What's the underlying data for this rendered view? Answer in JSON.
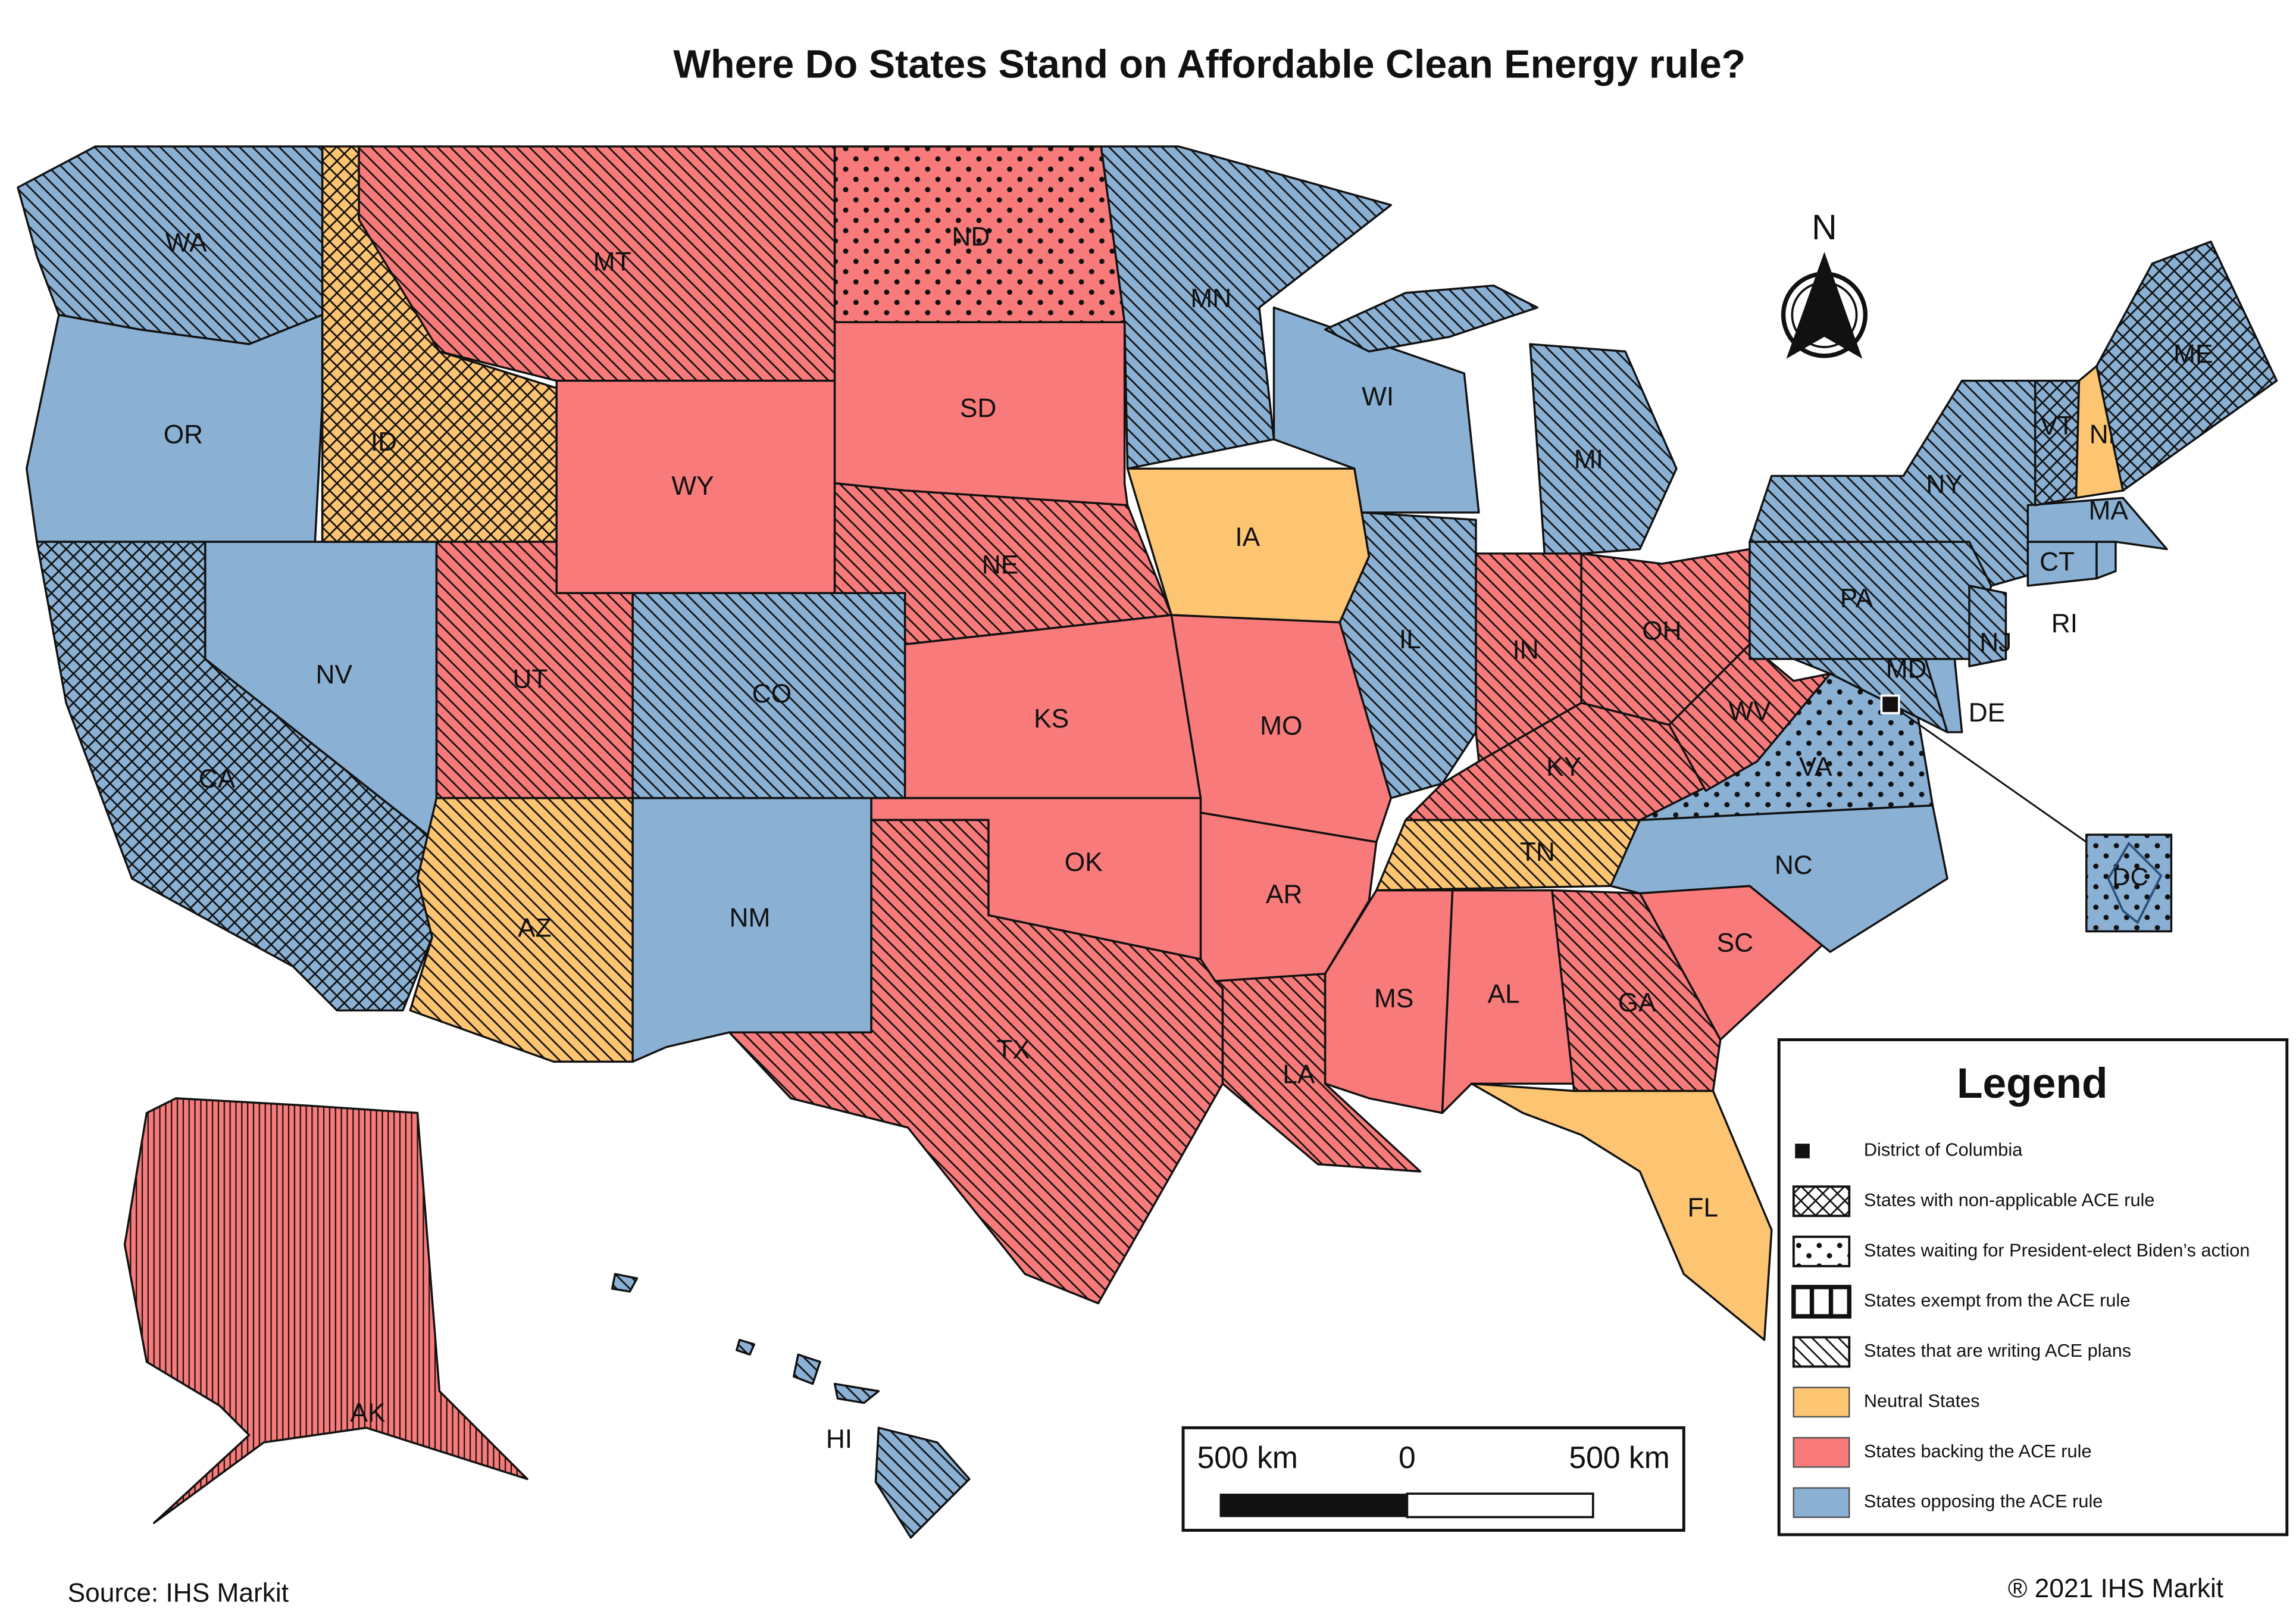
{
  "title": "Where Do States Stand on Affordable Clean Energy rule?",
  "map": {
    "states": [
      {
        "label": "WA",
        "color": "#8ab0d4",
        "pattern": "diagonal"
      },
      {
        "label": "OR",
        "color": "#8ab0d4",
        "pattern": null
      },
      {
        "label": "CA",
        "color": "#8ab0d4",
        "pattern": "crosshatch"
      },
      {
        "label": "NV",
        "color": "#8ab0d4",
        "pattern": null
      },
      {
        "label": "ID",
        "color": "#fdc472",
        "pattern": "crosshatch"
      },
      {
        "label": "MT",
        "color": "#f87a7a",
        "pattern": "diagonal"
      },
      {
        "label": "WY",
        "color": "#f87a7a",
        "pattern": null
      },
      {
        "label": "UT",
        "color": "#f87a7a",
        "pattern": "diagonal"
      },
      {
        "label": "AZ",
        "color": "#fdc472",
        "pattern": "diagonal"
      },
      {
        "label": "CO",
        "color": "#8ab0d4",
        "pattern": "diagonal"
      },
      {
        "label": "NM",
        "color": "#8ab0d4",
        "pattern": null
      },
      {
        "label": "ND",
        "color": "#f87a7a",
        "pattern": "dots"
      },
      {
        "label": "SD",
        "color": "#f87a7a",
        "pattern": null
      },
      {
        "label": "NE",
        "color": "#f87a7a",
        "pattern": "diagonal"
      },
      {
        "label": "KS",
        "color": "#f87a7a",
        "pattern": null
      },
      {
        "label": "OK",
        "color": "#f87a7a",
        "pattern": null
      },
      {
        "label": "TX",
        "color": "#f87a7a",
        "pattern": "diagonal"
      },
      {
        "label": "MN",
        "color": "#8ab0d4",
        "pattern": "diagonal"
      },
      {
        "label": "IA",
        "color": "#fdc472",
        "pattern": null
      },
      {
        "label": "MO",
        "color": "#f87a7a",
        "pattern": null
      },
      {
        "label": "AR",
        "color": "#f87a7a",
        "pattern": null
      },
      {
        "label": "LA",
        "color": "#f87a7a",
        "pattern": "diagonal"
      },
      {
        "label": "WI",
        "color": "#8ab0d4",
        "pattern": null
      },
      {
        "label": "IL",
        "color": "#8ab0d4",
        "pattern": "diagonal"
      },
      {
        "label": "MI",
        "color": "#8ab0d4",
        "pattern": "diagonal"
      },
      {
        "label": "IN",
        "color": "#f87a7a",
        "pattern": "diagonal"
      },
      {
        "label": "OH",
        "color": "#f87a7a",
        "pattern": "diagonal"
      },
      {
        "label": "KY",
        "color": "#f87a7a",
        "pattern": "diagonal"
      },
      {
        "label": "TN",
        "color": "#fdc472",
        "pattern": "diagonal"
      },
      {
        "label": "MS",
        "color": "#f87a7a",
        "pattern": null
      },
      {
        "label": "AL",
        "color": "#f87a7a",
        "pattern": null
      },
      {
        "label": "GA",
        "color": "#f87a7a",
        "pattern": "diagonal"
      },
      {
        "label": "FL",
        "color": "#fdc472",
        "pattern": null
      },
      {
        "label": "SC",
        "color": "#f87a7a",
        "pattern": null
      },
      {
        "label": "NC",
        "color": "#8ab0d4",
        "pattern": null
      },
      {
        "label": "VA",
        "color": "#8ab0d4",
        "pattern": "dots"
      },
      {
        "label": "WV",
        "color": "#f87a7a",
        "pattern": "diagonal"
      },
      {
        "label": "MD",
        "color": "#8ab0d4",
        "pattern": "diagonal"
      },
      {
        "label": "DE",
        "color": "#8ab0d4",
        "pattern": null
      },
      {
        "label": "PA",
        "color": "#8ab0d4",
        "pattern": "diagonal"
      },
      {
        "label": "NY",
        "color": "#8ab0d4",
        "pattern": "diagonal"
      },
      {
        "label": "NJ",
        "color": "#8ab0d4",
        "pattern": "diagonal"
      },
      {
        "label": "CT",
        "color": "#8ab0d4",
        "pattern": null
      },
      {
        "label": "RI",
        "color": "#8ab0d4",
        "pattern": null
      },
      {
        "label": "MA",
        "color": "#8ab0d4",
        "pattern": null
      },
      {
        "label": "VT",
        "color": "#8ab0d4",
        "pattern": "crosshatch"
      },
      {
        "label": "NH",
        "color": "#fdc472",
        "pattern": null
      },
      {
        "label": "ME",
        "color": "#8ab0d4",
        "pattern": "crosshatch"
      },
      {
        "label": "AK",
        "color": "#f87a7a",
        "pattern": "vertical"
      },
      {
        "label": "HI",
        "color": "#8ab0d4",
        "pattern": "diagonal"
      }
    ],
    "dc": {
      "label": "DC",
      "color": "#8ab0d4",
      "pattern": "dots"
    }
  },
  "legend": {
    "title": "Legend",
    "items": [
      {
        "label": "District of Columbia",
        "marker": "square"
      },
      {
        "label": "States with non-applicable ACE rule",
        "pattern": "crosshatch"
      },
      {
        "label": "States waiting for President-elect Biden’s action",
        "pattern": "dots"
      },
      {
        "label": "States exempt from the ACE rule",
        "pattern": "vertical"
      },
      {
        "label": "States that are writing ACE plans",
        "pattern": "diagonal"
      },
      {
        "label": "Neutral States",
        "color": "#fdc472"
      },
      {
        "label": "States backing the ACE rule",
        "color": "#f87a7a"
      },
      {
        "label": "States opposing the ACE rule",
        "color": "#8ab0d4"
      }
    ]
  },
  "scale_bar": {
    "labels": [
      "500 km",
      "0",
      "500 km"
    ]
  },
  "north": "N",
  "source": "Source: IHS Markit",
  "copyright": "® 2021 IHS Markit"
}
